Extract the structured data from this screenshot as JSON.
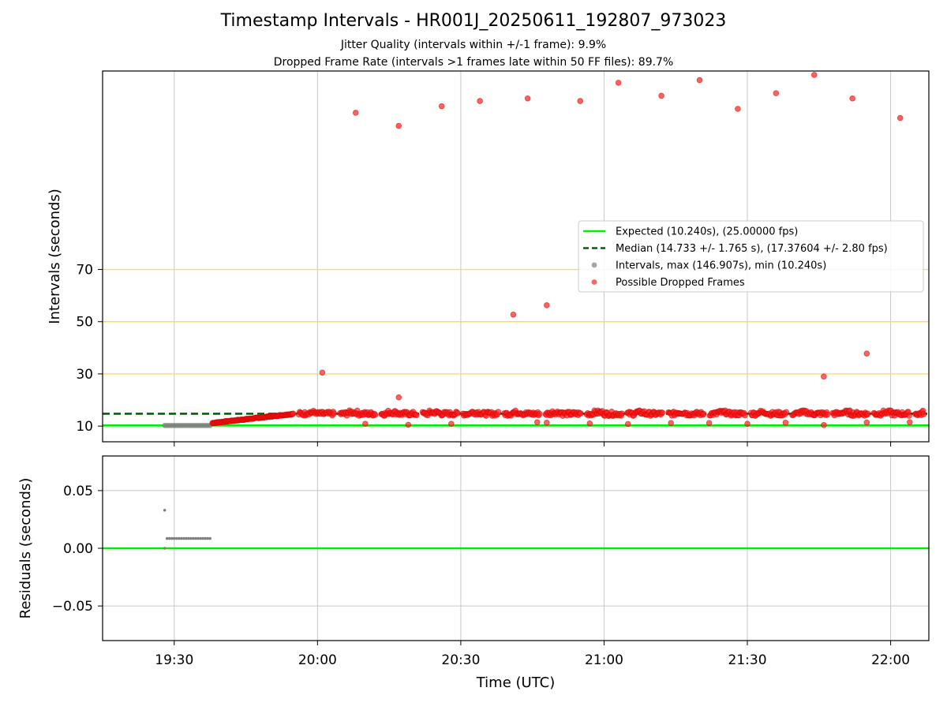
{
  "title": "Timestamp Intervals - HR001J_20250611_192807_973023",
  "subtitle_1": "Jitter Quality (intervals within +/-1 frame): 9.9%",
  "subtitle_2": "Dropped Frame Rate (intervals >1 frames late within 50 FF files): 89.7%",
  "colors": {
    "expected": "#00ee00",
    "median": "#006400",
    "intervals": "#808080",
    "dropped": "#ff2020",
    "guide": "#ffd966",
    "grid": "#c8c8c8"
  },
  "chart_data": [
    {
      "type": "scatter",
      "panel": "intervals",
      "ylabel": "Intervals (seconds)",
      "x_axis": "time (UTC)",
      "xlim": [
        "19:15",
        "22:08"
      ],
      "ylim": [
        4,
        146
      ],
      "ytick_labels": [
        "10",
        "30",
        "50",
        "70"
      ],
      "guide_lines_y": [
        30,
        50,
        70
      ],
      "grid": true,
      "legend_placement": "center-right",
      "lines": [
        {
          "name": "Expected (10.240s), (25.00000 fps)",
          "y": 10.24,
          "style": "solid",
          "color": "#00ee00"
        },
        {
          "name": "Median (14.733 +/- 1.765 s), (17.37604 +/- 2.80 fps)",
          "y": 14.733,
          "style": "dashed",
          "color": "#006400"
        }
      ],
      "series": [
        {
          "name": "Intervals, max (146.907s), min (10.240s)",
          "color": "#808080",
          "points": [
            [
              "19:28",
              10.24
            ],
            [
              "19:28.5",
              10.24
            ],
            [
              "19:29",
              10.24
            ],
            [
              "19:29.5",
              10.24
            ],
            [
              "19:30",
              10.24
            ],
            [
              "19:30.5",
              10.24
            ],
            [
              "19:31",
              10.24
            ],
            [
              "19:31.5",
              10.24
            ],
            [
              "19:32",
              10.24
            ],
            [
              "19:32.5",
              10.24
            ],
            [
              "19:33",
              10.24
            ],
            [
              "19:33.5",
              10.24
            ],
            [
              "19:34",
              10.24
            ],
            [
              "19:34.5",
              10.24
            ],
            [
              "19:35",
              10.24
            ],
            [
              "19:35.5",
              10.24
            ],
            [
              "19:36",
              10.24
            ],
            [
              "19:36.5",
              10.24
            ],
            [
              "19:37",
              10.24
            ],
            [
              "19:37.5",
              10.24
            ]
          ]
        },
        {
          "name": "Possible Dropped Frames",
          "color": "#ff2020",
          "ramp": {
            "from": [
              "19:38",
              11.2
            ],
            "to": [
              "19:55",
              14.7
            ]
          },
          "band": {
            "from": "19:55",
            "to": "22:07",
            "center": 14.73,
            "spread": 1.6
          },
          "points": [
            [
              "20:01",
              30.5
            ],
            [
              "20:08",
              130.0
            ],
            [
              "20:10",
              10.9
            ],
            [
              "20:17",
              125.0
            ],
            [
              "20:17",
              21.0
            ],
            [
              "20:19",
              10.5
            ],
            [
              "20:26",
              132.5
            ],
            [
              "20:28",
              10.9
            ],
            [
              "20:34",
              134.5
            ],
            [
              "20:41",
              52.7
            ],
            [
              "20:44",
              135.5
            ],
            [
              "20:46",
              11.5
            ],
            [
              "20:48",
              56.3
            ],
            [
              "20:48",
              11.3
            ],
            [
              "20:55",
              134.5
            ],
            [
              "20:57",
              11.0
            ],
            [
              "21:03",
              141.5
            ],
            [
              "21:05",
              10.8
            ],
            [
              "21:12",
              136.5
            ],
            [
              "21:14",
              11.2
            ],
            [
              "21:20",
              142.5
            ],
            [
              "21:22",
              11.2
            ],
            [
              "21:28",
              131.5
            ],
            [
              "21:30",
              10.9
            ],
            [
              "21:36",
              137.5
            ],
            [
              "21:38",
              11.3
            ],
            [
              "21:44",
              144.5
            ],
            [
              "21:46",
              29.0
            ],
            [
              "21:46",
              10.4
            ],
            [
              "21:52",
              135.5
            ],
            [
              "21:55",
              37.8
            ],
            [
              "21:55",
              11.4
            ],
            [
              "22:02",
              128.0
            ],
            [
              "22:04",
              11.5
            ]
          ]
        }
      ]
    },
    {
      "type": "scatter",
      "panel": "residuals",
      "ylabel": "Residuals (seconds)",
      "xlabel": "Time (UTC)",
      "xtick_labels": [
        "19:30",
        "20:00",
        "20:30",
        "21:00",
        "21:30",
        "22:00"
      ],
      "xlim": [
        "19:15",
        "22:08"
      ],
      "ylim": [
        -0.08,
        0.08
      ],
      "ytick_labels": [
        "0.05",
        "0.00",
        "−0.05"
      ],
      "grid": true,
      "lines": [
        {
          "y": 0.0,
          "color": "#00ee00"
        }
      ],
      "series": [
        {
          "color": "#808080",
          "points": [
            [
              "19:28",
              0.033
            ],
            [
              "19:28",
              0.0
            ],
            [
              "19:28.5",
              0.0085
            ],
            [
              "19:29",
              0.0085
            ],
            [
              "19:29.5",
              0.0085
            ],
            [
              "19:30",
              0.0085
            ],
            [
              "19:30.5",
              0.0085
            ],
            [
              "19:31",
              0.0085
            ],
            [
              "19:31.5",
              0.0085
            ],
            [
              "19:32",
              0.0085
            ],
            [
              "19:32.5",
              0.0085
            ],
            [
              "19:33",
              0.0085
            ],
            [
              "19:33.5",
              0.0085
            ],
            [
              "19:34",
              0.0085
            ],
            [
              "19:34.5",
              0.0085
            ],
            [
              "19:35",
              0.0085
            ],
            [
              "19:35.5",
              0.0085
            ],
            [
              "19:36",
              0.0085
            ],
            [
              "19:36.5",
              0.0085
            ],
            [
              "19:37",
              0.0085
            ],
            [
              "19:37.5",
              0.0085
            ]
          ]
        }
      ]
    }
  ]
}
